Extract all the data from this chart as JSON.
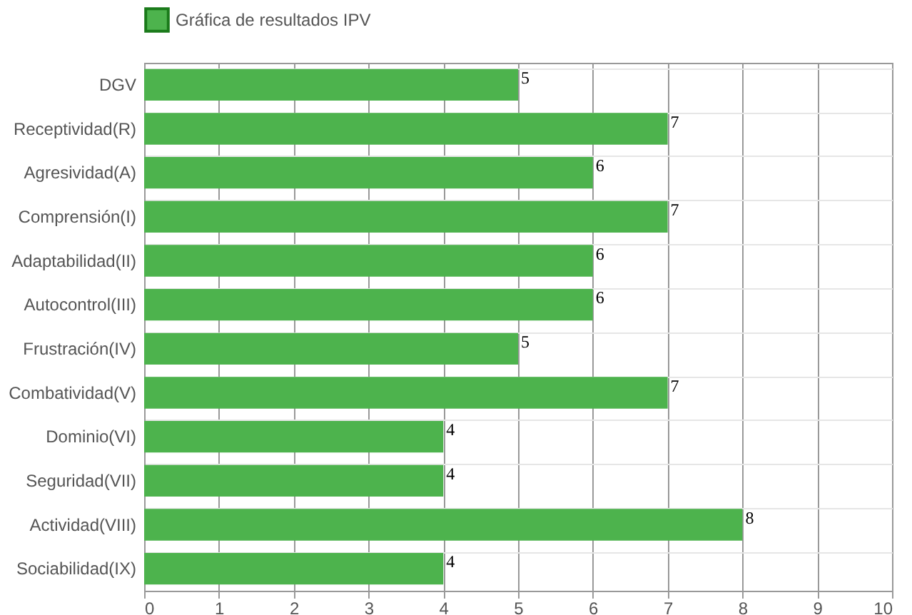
{
  "chart_data": {
    "type": "bar",
    "orientation": "horizontal",
    "categories": [
      "DGV",
      "Receptividad(R)",
      "Agresividad(A)",
      "Comprensión(I)",
      "Adaptabilidad(II)",
      "Autocontrol(III)",
      "Frustración(IV)",
      "Combatividad(V)",
      "Dominio(VI)",
      "Seguridad(VII)",
      "Actividad(VIII)",
      "Sociabilidad(IX)"
    ],
    "series": [
      {
        "name": "Gráfica de resultados IPV",
        "color": "#4db34d",
        "values": [
          5,
          7,
          6,
          7,
          6,
          6,
          5,
          7,
          4,
          4,
          8,
          4
        ]
      }
    ],
    "xlim": [
      0,
      10
    ],
    "xticks": [
      0,
      1,
      2,
      3,
      4,
      5,
      6,
      7,
      8,
      9,
      10
    ],
    "grid": true,
    "legend": "top",
    "data_labels": true
  }
}
